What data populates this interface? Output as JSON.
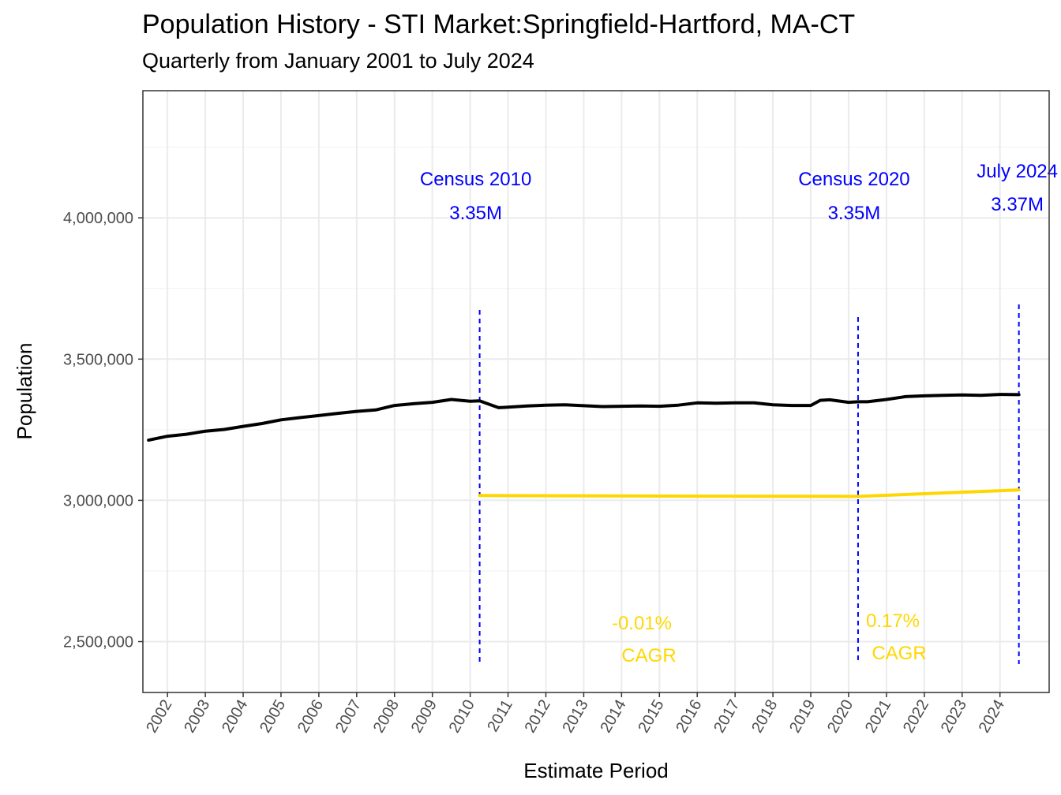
{
  "title": "Population History - STI Market:Springfield-Hartford, MA-CT",
  "subtitle": "Quarterly from January 2001 to July 2024",
  "chart_data": {
    "type": "line",
    "xlabel": "Estimate Period",
    "ylabel": "Population",
    "xlim": [
      2001.35,
      2025.3
    ],
    "ylim": [
      2320000,
      4450000
    ],
    "x_ticks": [
      {
        "value": 2002,
        "label": "2002"
      },
      {
        "value": 2003,
        "label": "2003"
      },
      {
        "value": 2004,
        "label": "2004"
      },
      {
        "value": 2005,
        "label": "2005"
      },
      {
        "value": 2006,
        "label": "2006"
      },
      {
        "value": 2007,
        "label": "2007"
      },
      {
        "value": 2008,
        "label": "2008"
      },
      {
        "value": 2009,
        "label": "2009"
      },
      {
        "value": 2010,
        "label": "2010"
      },
      {
        "value": 2011,
        "label": "2011"
      },
      {
        "value": 2012,
        "label": "2012"
      },
      {
        "value": 2013,
        "label": "2013"
      },
      {
        "value": 2014,
        "label": "2014"
      },
      {
        "value": 2015,
        "label": "2015"
      },
      {
        "value": 2016,
        "label": "2016"
      },
      {
        "value": 2017,
        "label": "2017"
      },
      {
        "value": 2018,
        "label": "2018"
      },
      {
        "value": 2019,
        "label": "2019"
      },
      {
        "value": 2020,
        "label": "2020"
      },
      {
        "value": 2021,
        "label": "2021"
      },
      {
        "value": 2022,
        "label": "2022"
      },
      {
        "value": 2023,
        "label": "2023"
      },
      {
        "value": 2024,
        "label": "2024"
      }
    ],
    "y_ticks": [
      {
        "value": 2500000,
        "label": "2,500,000"
      },
      {
        "value": 3000000,
        "label": "3,000,000"
      },
      {
        "value": 3500000,
        "label": "3,500,000"
      },
      {
        "value": 4000000,
        "label": "4,000,000"
      }
    ],
    "y_minor_ticks": [
      2750000,
      3250000,
      3750000,
      4250000
    ],
    "series": [
      {
        "name": "Population",
        "color": "#000000",
        "points": [
          [
            2001.5,
            3213000
          ],
          [
            2002.0,
            3227000
          ],
          [
            2002.5,
            3234000
          ],
          [
            2003.0,
            3245000
          ],
          [
            2003.5,
            3251000
          ],
          [
            2004.0,
            3262000
          ],
          [
            2004.5,
            3272000
          ],
          [
            2005.0,
            3285000
          ],
          [
            2005.5,
            3293000
          ],
          [
            2006.0,
            3300000
          ],
          [
            2006.5,
            3308000
          ],
          [
            2007.0,
            3315000
          ],
          [
            2007.5,
            3320000
          ],
          [
            2008.0,
            3336000
          ],
          [
            2008.5,
            3342000
          ],
          [
            2009.0,
            3347000
          ],
          [
            2009.5,
            3357000
          ],
          [
            2010.0,
            3351000
          ],
          [
            2010.25,
            3352000
          ],
          [
            2010.5,
            3340000
          ],
          [
            2010.75,
            3328000
          ],
          [
            2011.0,
            3330000
          ],
          [
            2011.5,
            3334000
          ],
          [
            2012.0,
            3337000
          ],
          [
            2012.5,
            3338000
          ],
          [
            2013.0,
            3335000
          ],
          [
            2013.5,
            3332000
          ],
          [
            2014.0,
            3333000
          ],
          [
            2014.5,
            3334000
          ],
          [
            2015.0,
            3333000
          ],
          [
            2015.5,
            3337000
          ],
          [
            2016.0,
            3345000
          ],
          [
            2016.5,
            3344000
          ],
          [
            2017.0,
            3345000
          ],
          [
            2017.5,
            3345000
          ],
          [
            2018.0,
            3338000
          ],
          [
            2018.5,
            3336000
          ],
          [
            2019.0,
            3336000
          ],
          [
            2019.25,
            3354000
          ],
          [
            2019.5,
            3356000
          ],
          [
            2020.0,
            3347000
          ],
          [
            2020.25,
            3349000
          ],
          [
            2020.5,
            3349000
          ],
          [
            2021.0,
            3357000
          ],
          [
            2021.5,
            3367000
          ],
          [
            2022.0,
            3370000
          ],
          [
            2022.5,
            3372000
          ],
          [
            2023.0,
            3373000
          ],
          [
            2023.5,
            3372000
          ],
          [
            2024.0,
            3375000
          ],
          [
            2024.5,
            3374000
          ]
        ]
      },
      {
        "name": "CAGR reference",
        "color": "#ffd700",
        "points": [
          [
            2010.25,
            3017000
          ],
          [
            2015.25,
            3015000
          ],
          [
            2020.25,
            3014000
          ],
          [
            2024.5,
            3037000
          ]
        ]
      }
    ],
    "reference_lines": [
      {
        "x": 2010.25,
        "label": "Census 2010",
        "value_label": "3.35M"
      },
      {
        "x": 2020.25,
        "label": "Census 2020",
        "value_label": "3.35M"
      },
      {
        "x": 2024.5,
        "label": "July 2024",
        "value_label": "3.37M"
      }
    ],
    "cagr_annotations": [
      {
        "period": "2010-2020",
        "rate": "-0.01%",
        "label": "CAGR"
      },
      {
        "period": "2020-2024",
        "rate": "0.17%",
        "label": "CAGR"
      }
    ],
    "colors": {
      "line": "#000000",
      "cagr": "#ffd700",
      "annotation": "#0000ff",
      "grid_major": "#ebebeb"
    }
  }
}
